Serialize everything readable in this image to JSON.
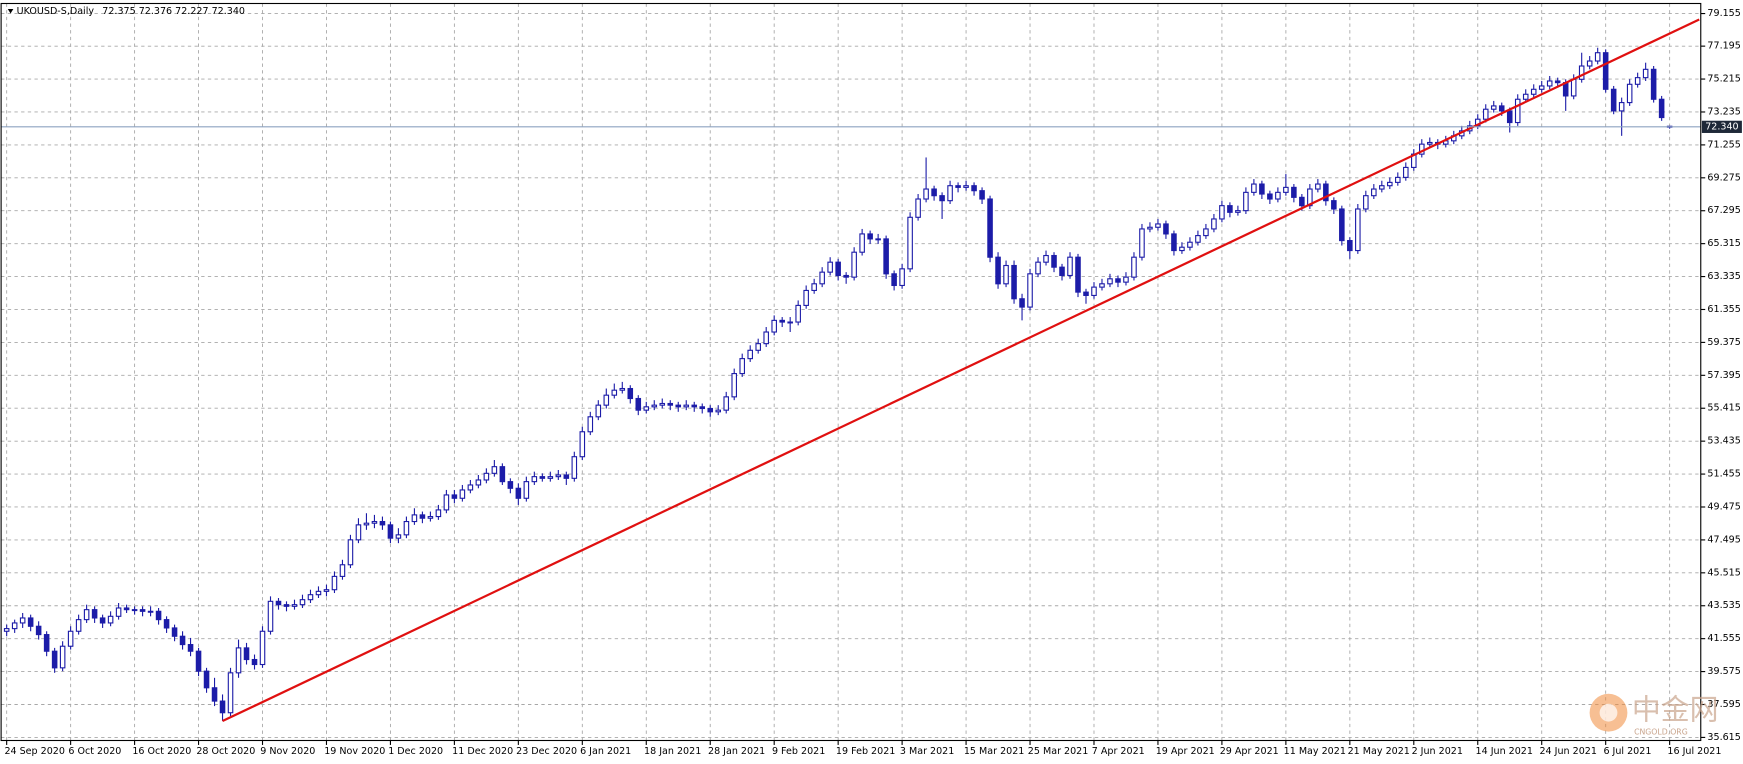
{
  "chart_data": {
    "type": "candlestick",
    "symbol": "UKOUSD-S,Daily",
    "quote": "72.375 72.376 72.227 72.340",
    "color": "#1c1ca8",
    "bull_fill": "#ffffff",
    "grid": true,
    "ylim": [
      35.43,
      79.76
    ],
    "yticks": [
      79.155,
      77.195,
      75.215,
      73.235,
      71.255,
      69.275,
      67.295,
      65.315,
      63.335,
      61.355,
      59.375,
      57.395,
      55.415,
      53.435,
      51.455,
      49.475,
      47.495,
      45.515,
      43.535,
      41.555,
      39.575,
      37.595,
      35.615
    ],
    "current_price": {
      "value": 72.34,
      "label": "72.340",
      "color": "#8ea3c0"
    },
    "trendline": {
      "color": "#e01010",
      "points": [
        [
          27,
          36.6
        ],
        [
          211.7,
          78.8
        ]
      ]
    },
    "watermark": {
      "text": "中金网",
      "subtext": "CNGOLD.ORG"
    },
    "categories": [
      "24 Sep 2020",
      null,
      null,
      null,
      null,
      null,
      null,
      null,
      "6 Oct 2020",
      null,
      null,
      null,
      null,
      null,
      null,
      null,
      "16 Oct 2020",
      null,
      null,
      null,
      null,
      null,
      null,
      null,
      "28 Oct 2020",
      null,
      null,
      null,
      null,
      null,
      null,
      null,
      "9 Nov 2020",
      null,
      null,
      null,
      null,
      null,
      null,
      null,
      "19 Nov 2020",
      null,
      null,
      null,
      null,
      null,
      null,
      null,
      "1 Dec 2020",
      null,
      null,
      null,
      null,
      null,
      null,
      null,
      "11 Dec 2020",
      null,
      null,
      null,
      null,
      null,
      null,
      null,
      "23 Dec 2020",
      null,
      null,
      null,
      null,
      null,
      null,
      null,
      "6 Jan 2021",
      null,
      null,
      null,
      null,
      null,
      null,
      null,
      "18 Jan 2021",
      null,
      null,
      null,
      null,
      null,
      null,
      null,
      "28 Jan 2021",
      null,
      null,
      null,
      null,
      null,
      null,
      null,
      "9 Feb 2021",
      null,
      null,
      null,
      null,
      null,
      null,
      null,
      "19 Feb 2021",
      null,
      null,
      null,
      null,
      null,
      null,
      null,
      "3 Mar 2021",
      null,
      null,
      null,
      null,
      null,
      null,
      null,
      "15 Mar 2021",
      null,
      null,
      null,
      null,
      null,
      null,
      null,
      "25 Mar 2021",
      null,
      null,
      null,
      null,
      null,
      null,
      null,
      "7 Apr 2021",
      null,
      null,
      null,
      null,
      null,
      null,
      null,
      "19 Apr 2021",
      null,
      null,
      null,
      null,
      null,
      null,
      null,
      "29 Apr 2021",
      null,
      null,
      null,
      null,
      null,
      null,
      null,
      "11 May 2021",
      null,
      null,
      null,
      null,
      null,
      null,
      null,
      "21 May 2021",
      null,
      null,
      null,
      null,
      null,
      null,
      null,
      "2 Jun 2021",
      null,
      null,
      null,
      null,
      null,
      null,
      null,
      "14 Jun 2021",
      null,
      null,
      null,
      null,
      null,
      null,
      null,
      "24 Jun 2021",
      null,
      null,
      null,
      null,
      null,
      null,
      null,
      "6 Jul 2021",
      null,
      null,
      null,
      null,
      null,
      null,
      null,
      "16 Jul 2021"
    ],
    "ohlc": [
      [
        42.0,
        42.4,
        41.7,
        42.16
      ],
      [
        42.16,
        42.7,
        41.9,
        42.5
      ],
      [
        42.5,
        43.1,
        42.2,
        42.8
      ],
      [
        42.8,
        43.0,
        42.0,
        42.3
      ],
      [
        42.3,
        42.6,
        41.5,
        41.8
      ],
      [
        41.8,
        42.0,
        40.5,
        40.8
      ],
      [
        40.8,
        41.0,
        39.5,
        39.8
      ],
      [
        39.8,
        41.4,
        39.6,
        41.1
      ],
      [
        41.1,
        42.3,
        40.9,
        42.0
      ],
      [
        42.0,
        43.0,
        41.8,
        42.7
      ],
      [
        42.7,
        43.6,
        42.5,
        43.3
      ],
      [
        43.3,
        43.5,
        42.5,
        42.8
      ],
      [
        42.8,
        43.0,
        42.2,
        42.5
      ],
      [
        42.5,
        43.2,
        42.3,
        42.9
      ],
      [
        42.9,
        43.7,
        42.7,
        43.4
      ],
      [
        43.4,
        43.6,
        43.1,
        43.3
      ],
      [
        43.3,
        43.5,
        43.0,
        43.3
      ],
      [
        43.3,
        43.5,
        42.9,
        43.2
      ],
      [
        43.2,
        43.5,
        42.9,
        43.2
      ],
      [
        43.2,
        43.4,
        42.4,
        42.7
      ],
      [
        42.7,
        42.9,
        41.9,
        42.2
      ],
      [
        42.2,
        42.4,
        41.4,
        41.7
      ],
      [
        41.7,
        42.0,
        40.9,
        41.2
      ],
      [
        41.2,
        41.6,
        40.5,
        40.8
      ],
      [
        40.8,
        41.0,
        39.3,
        39.6
      ],
      [
        39.6,
        39.8,
        38.3,
        38.6
      ],
      [
        38.6,
        39.2,
        37.5,
        37.8
      ],
      [
        37.8,
        38.2,
        36.6,
        37.1
      ],
      [
        37.1,
        39.8,
        36.9,
        39.5
      ],
      [
        39.5,
        41.5,
        39.2,
        41.0
      ],
      [
        41.0,
        41.3,
        40.0,
        40.3
      ],
      [
        40.3,
        40.6,
        39.7,
        40.0
      ],
      [
        40.0,
        42.3,
        39.8,
        42.0
      ],
      [
        42.0,
        44.1,
        41.8,
        43.8
      ],
      [
        43.8,
        44.0,
        43.3,
        43.6
      ],
      [
        43.6,
        43.8,
        43.2,
        43.5
      ],
      [
        43.5,
        43.9,
        43.3,
        43.6
      ],
      [
        43.6,
        44.2,
        43.4,
        43.9
      ],
      [
        43.9,
        44.5,
        43.7,
        44.2
      ],
      [
        44.2,
        44.7,
        44.0,
        44.4
      ],
      [
        44.4,
        44.8,
        44.1,
        44.5
      ],
      [
        44.5,
        45.6,
        44.3,
        45.3
      ],
      [
        45.3,
        46.3,
        45.1,
        46.0
      ],
      [
        46.0,
        47.8,
        45.8,
        47.5
      ],
      [
        47.5,
        48.8,
        47.3,
        48.4
      ],
      [
        48.4,
        49.1,
        48.1,
        48.5
      ],
      [
        48.5,
        49.0,
        48.2,
        48.6
      ],
      [
        48.6,
        48.9,
        48.1,
        48.4
      ],
      [
        48.4,
        48.6,
        47.3,
        47.6
      ],
      [
        47.6,
        48.2,
        47.3,
        47.8
      ],
      [
        47.8,
        48.9,
        47.6,
        48.6
      ],
      [
        48.6,
        49.4,
        48.4,
        49.0
      ],
      [
        49.0,
        49.2,
        48.5,
        48.8
      ],
      [
        48.8,
        49.2,
        48.6,
        48.9
      ],
      [
        48.9,
        49.6,
        48.7,
        49.3
      ],
      [
        49.3,
        50.5,
        49.1,
        50.2
      ],
      [
        50.2,
        50.5,
        49.7,
        50.0
      ],
      [
        50.0,
        50.8,
        49.8,
        50.5
      ],
      [
        50.5,
        51.1,
        50.3,
        50.8
      ],
      [
        50.8,
        51.4,
        50.6,
        51.1
      ],
      [
        51.1,
        51.8,
        50.9,
        51.5
      ],
      [
        51.5,
        52.3,
        51.3,
        51.9
      ],
      [
        51.9,
        52.1,
        50.8,
        51.0
      ],
      [
        51.0,
        51.2,
        50.3,
        50.6
      ],
      [
        50.6,
        50.9,
        49.6,
        50.0
      ],
      [
        50.0,
        51.3,
        49.8,
        51.0
      ],
      [
        51.0,
        51.6,
        50.8,
        51.3
      ],
      [
        51.3,
        51.5,
        51.0,
        51.2
      ],
      [
        51.2,
        51.6,
        51.0,
        51.3
      ],
      [
        51.3,
        51.7,
        51.1,
        51.4
      ],
      [
        51.4,
        51.6,
        50.8,
        51.2
      ],
      [
        51.2,
        52.8,
        51.0,
        52.5
      ],
      [
        52.5,
        54.3,
        52.3,
        54.0
      ],
      [
        54.0,
        55.2,
        53.8,
        54.9
      ],
      [
        54.9,
        55.9,
        54.7,
        55.6
      ],
      [
        55.6,
        56.6,
        55.4,
        56.2
      ],
      [
        56.2,
        56.9,
        56.0,
        56.5
      ],
      [
        56.5,
        57.0,
        56.3,
        56.6
      ],
      [
        56.6,
        56.8,
        55.7,
        56.0
      ],
      [
        56.0,
        56.2,
        55.0,
        55.3
      ],
      [
        55.3,
        55.8,
        55.1,
        55.5
      ],
      [
        55.5,
        55.9,
        55.3,
        55.6
      ],
      [
        55.6,
        56.0,
        55.4,
        55.7
      ],
      [
        55.7,
        55.9,
        55.3,
        55.6
      ],
      [
        55.6,
        55.8,
        55.2,
        55.5
      ],
      [
        55.5,
        55.9,
        55.3,
        55.6
      ],
      [
        55.6,
        55.8,
        55.2,
        55.5
      ],
      [
        55.5,
        55.7,
        55.1,
        55.4
      ],
      [
        55.4,
        55.6,
        54.9,
        55.2
      ],
      [
        55.2,
        55.6,
        55.0,
        55.3
      ],
      [
        55.3,
        56.4,
        55.1,
        56.1
      ],
      [
        56.1,
        57.8,
        55.9,
        57.5
      ],
      [
        57.5,
        58.7,
        57.3,
        58.4
      ],
      [
        58.4,
        59.2,
        58.2,
        58.9
      ],
      [
        58.9,
        59.6,
        58.7,
        59.3
      ],
      [
        59.3,
        60.3,
        59.1,
        60.0
      ],
      [
        60.0,
        61.0,
        59.8,
        60.7
      ],
      [
        60.7,
        60.9,
        60.3,
        60.6
      ],
      [
        60.6,
        60.9,
        60.0,
        60.6
      ],
      [
        60.6,
        61.9,
        60.4,
        61.6
      ],
      [
        61.6,
        62.8,
        61.4,
        62.5
      ],
      [
        62.5,
        63.2,
        62.3,
        62.9
      ],
      [
        62.9,
        63.9,
        62.7,
        63.6
      ],
      [
        63.6,
        64.5,
        63.4,
        64.2
      ],
      [
        64.2,
        64.4,
        63.1,
        63.4
      ],
      [
        63.4,
        63.6,
        62.9,
        63.3
      ],
      [
        63.3,
        65.1,
        63.1,
        64.8
      ],
      [
        64.8,
        66.2,
        64.6,
        65.9
      ],
      [
        65.9,
        66.1,
        65.3,
        65.6
      ],
      [
        65.6,
        65.9,
        65.3,
        65.6
      ],
      [
        65.6,
        65.8,
        63.2,
        63.5
      ],
      [
        63.5,
        63.7,
        62.5,
        62.8
      ],
      [
        62.8,
        64.1,
        62.6,
        63.8
      ],
      [
        63.8,
        67.2,
        63.6,
        66.9
      ],
      [
        66.9,
        68.3,
        66.7,
        68.0
      ],
      [
        68.0,
        70.5,
        67.8,
        68.6
      ],
      [
        68.6,
        68.8,
        67.9,
        68.2
      ],
      [
        68.2,
        68.4,
        66.8,
        67.9
      ],
      [
        67.9,
        69.1,
        67.7,
        68.8
      ],
      [
        68.8,
        69.0,
        68.4,
        68.7
      ],
      [
        68.7,
        69.1,
        68.5,
        68.8
      ],
      [
        68.8,
        69.0,
        68.2,
        68.5
      ],
      [
        68.5,
        68.7,
        67.7,
        68.0
      ],
      [
        68.0,
        68.2,
        64.2,
        64.5
      ],
      [
        64.5,
        64.8,
        62.6,
        62.9
      ],
      [
        62.9,
        64.3,
        62.7,
        64.0
      ],
      [
        64.0,
        64.3,
        61.7,
        62.0
      ],
      [
        62.0,
        62.3,
        60.7,
        61.5
      ],
      [
        61.5,
        63.8,
        61.3,
        63.5
      ],
      [
        63.5,
        64.5,
        63.3,
        64.2
      ],
      [
        64.2,
        64.9,
        64.0,
        64.6
      ],
      [
        64.6,
        64.8,
        63.6,
        63.9
      ],
      [
        63.9,
        64.1,
        63.1,
        63.4
      ],
      [
        63.4,
        64.8,
        63.2,
        64.5
      ],
      [
        64.5,
        64.7,
        62.1,
        62.4
      ],
      [
        62.4,
        62.6,
        61.7,
        62.2
      ],
      [
        62.2,
        63.0,
        62.0,
        62.7
      ],
      [
        62.7,
        63.2,
        62.5,
        62.9
      ],
      [
        62.9,
        63.5,
        62.7,
        63.2
      ],
      [
        63.2,
        63.4,
        62.7,
        63.0
      ],
      [
        63.0,
        63.6,
        62.8,
        63.3
      ],
      [
        63.3,
        64.8,
        63.1,
        64.5
      ],
      [
        64.5,
        66.5,
        64.3,
        66.2
      ],
      [
        66.2,
        66.6,
        66.0,
        66.3
      ],
      [
        66.3,
        66.8,
        66.1,
        66.5
      ],
      [
        66.5,
        66.7,
        65.6,
        65.9
      ],
      [
        65.9,
        66.1,
        64.6,
        64.9
      ],
      [
        64.9,
        65.4,
        64.7,
        65.1
      ],
      [
        65.1,
        65.7,
        64.9,
        65.4
      ],
      [
        65.4,
        66.1,
        65.2,
        65.8
      ],
      [
        65.8,
        66.5,
        65.6,
        66.2
      ],
      [
        66.2,
        67.1,
        66.0,
        66.8
      ],
      [
        66.8,
        67.9,
        66.6,
        67.6
      ],
      [
        67.6,
        67.8,
        66.9,
        67.2
      ],
      [
        67.2,
        67.6,
        67.0,
        67.3
      ],
      [
        67.3,
        68.7,
        67.1,
        68.4
      ],
      [
        68.4,
        69.2,
        68.2,
        68.9
      ],
      [
        68.9,
        69.1,
        68.0,
        68.3
      ],
      [
        68.3,
        68.5,
        67.7,
        68.0
      ],
      [
        68.0,
        68.7,
        67.8,
        68.4
      ],
      [
        68.4,
        69.5,
        68.2,
        68.7
      ],
      [
        68.7,
        68.9,
        67.8,
        68.1
      ],
      [
        68.1,
        68.3,
        67.3,
        67.6
      ],
      [
        67.6,
        68.9,
        67.4,
        68.6
      ],
      [
        68.6,
        69.2,
        68.4,
        68.9
      ],
      [
        68.9,
        69.1,
        67.6,
        67.9
      ],
      [
        67.9,
        68.1,
        67.1,
        67.4
      ],
      [
        67.4,
        67.6,
        65.2,
        65.5
      ],
      [
        65.5,
        65.7,
        64.4,
        64.9
      ],
      [
        64.9,
        67.7,
        64.7,
        67.4
      ],
      [
        67.4,
        68.5,
        67.2,
        68.2
      ],
      [
        68.2,
        68.9,
        68.0,
        68.6
      ],
      [
        68.6,
        69.1,
        68.4,
        68.8
      ],
      [
        68.8,
        69.3,
        68.6,
        69.0
      ],
      [
        69.0,
        69.6,
        68.8,
        69.3
      ],
      [
        69.3,
        70.2,
        69.1,
        69.9
      ],
      [
        69.9,
        71.0,
        69.7,
        70.7
      ],
      [
        70.7,
        71.6,
        70.5,
        71.3
      ],
      [
        71.3,
        71.7,
        71.1,
        71.4
      ],
      [
        71.4,
        71.6,
        71.0,
        71.3
      ],
      [
        71.3,
        71.8,
        71.1,
        71.5
      ],
      [
        71.5,
        72.1,
        71.3,
        71.8
      ],
      [
        71.8,
        72.4,
        71.6,
        72.1
      ],
      [
        72.1,
        72.7,
        71.9,
        72.4
      ],
      [
        72.4,
        73.1,
        72.2,
        72.8
      ],
      [
        72.8,
        73.7,
        72.6,
        73.4
      ],
      [
        73.4,
        73.9,
        73.2,
        73.6
      ],
      [
        73.6,
        73.8,
        73.0,
        73.3
      ],
      [
        73.3,
        73.5,
        72.0,
        72.6
      ],
      [
        72.6,
        74.3,
        72.4,
        74.0
      ],
      [
        74.0,
        74.6,
        73.8,
        74.3
      ],
      [
        74.3,
        74.9,
        74.1,
        74.6
      ],
      [
        74.6,
        75.1,
        74.4,
        74.8
      ],
      [
        74.8,
        75.4,
        74.6,
        75.1
      ],
      [
        75.1,
        75.3,
        74.7,
        75.0
      ],
      [
        75.0,
        75.2,
        73.3,
        74.2
      ],
      [
        74.2,
        75.5,
        74.0,
        75.2
      ],
      [
        75.2,
        76.8,
        75.0,
        76.0
      ],
      [
        76.0,
        76.6,
        75.8,
        76.3
      ],
      [
        76.3,
        77.1,
        76.1,
        76.8
      ],
      [
        76.8,
        77.0,
        74.4,
        74.6
      ],
      [
        74.6,
        74.8,
        73.1,
        73.3
      ],
      [
        73.3,
        74.1,
        71.8,
        73.8
      ],
      [
        73.8,
        75.2,
        73.6,
        74.9
      ],
      [
        74.9,
        75.6,
        74.7,
        75.3
      ],
      [
        75.3,
        76.2,
        75.1,
        75.8
      ],
      [
        75.8,
        76.0,
        73.8,
        74.0
      ],
      [
        74.0,
        74.2,
        72.7,
        72.9
      ],
      [
        72.375,
        72.376,
        72.227,
        72.34
      ]
    ]
  }
}
